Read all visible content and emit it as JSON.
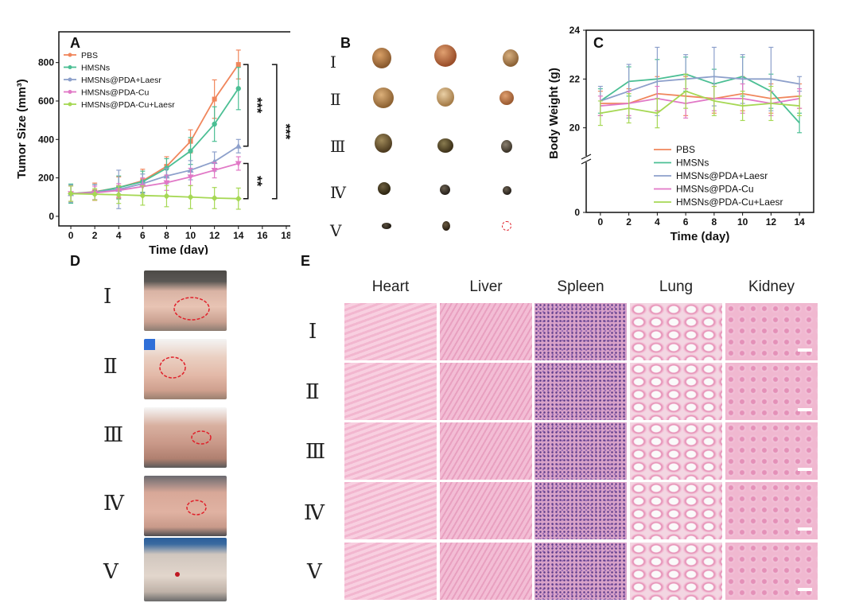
{
  "panels": {
    "a": "A",
    "b": "B",
    "c": "C",
    "d": "D",
    "e": "E"
  },
  "groups": [
    "Ⅰ",
    "Ⅱ",
    "Ⅲ",
    "Ⅳ",
    "Ⅴ"
  ],
  "organs": [
    "Heart",
    "Liver",
    "Spleen",
    "Lung",
    "Kidney"
  ],
  "colors": {
    "PBS": "#f0865c",
    "HMSNs": "#4bbf94",
    "HMSNs@PDA+Laesr": "#8da0cb",
    "HMSNs@PDA-Cu": "#e178c6",
    "HMSNs@PDA-Cu+Laesr": "#a6d854"
  },
  "chart_data": [
    {
      "type": "line",
      "panel": "A",
      "xlabel": "Time (day)",
      "ylabel": "Tumor Size (mm³)",
      "xlim": [
        -1,
        19
      ],
      "ylim": [
        -50,
        960
      ],
      "xticks": [
        0,
        2,
        4,
        6,
        8,
        10,
        12,
        14,
        16,
        18
      ],
      "yticks": [
        0,
        200,
        400,
        600,
        800
      ],
      "x": [
        0,
        2,
        4,
        6,
        8,
        10,
        12,
        14
      ],
      "series": [
        {
          "name": "PBS",
          "values": [
            118,
            128,
            150,
            185,
            260,
            390,
            610,
            790
          ],
          "errors": [
            40,
            45,
            55,
            60,
            50,
            60,
            100,
            75
          ]
        },
        {
          "name": "HMSNs",
          "values": [
            118,
            126,
            150,
            180,
            250,
            340,
            480,
            665
          ],
          "errors": [
            50,
            40,
            60,
            55,
            50,
            70,
            90,
            110
          ]
        },
        {
          "name": "HMSNs@PDA+Laesr",
          "values": [
            118,
            125,
            140,
            170,
            210,
            240,
            285,
            365
          ],
          "errors": [
            45,
            40,
            100,
            50,
            40,
            50,
            50,
            35
          ]
        },
        {
          "name": "HMSNs@PDA-Cu",
          "values": [
            118,
            122,
            135,
            155,
            175,
            205,
            240,
            275
          ],
          "errors": [
            40,
            35,
            35,
            45,
            40,
            45,
            40,
            35
          ]
        },
        {
          "name": "HMSNs@PDA-Cu+Laesr",
          "values": [
            118,
            115,
            112,
            108,
            105,
            100,
            95,
            92
          ],
          "errors": [
            40,
            30,
            45,
            50,
            55,
            60,
            55,
            55
          ]
        }
      ],
      "significance": [
        {
          "label": "***",
          "from": 365,
          "to": 790
        },
        {
          "label": "**",
          "from": 92,
          "to": 275
        },
        {
          "label": "***",
          "from": 92,
          "to": 790
        }
      ]
    },
    {
      "type": "line",
      "panel": "C",
      "xlabel": "Time (day)",
      "ylabel": "Body Weight (g)",
      "xlim": [
        -1,
        15
      ],
      "ylim": [
        0,
        24
      ],
      "axis_break": [
        0,
        19.5
      ],
      "xticks": [
        0,
        2,
        4,
        6,
        8,
        10,
        12,
        14
      ],
      "yticks": [
        0,
        20,
        22,
        24
      ],
      "x": [
        0,
        2,
        4,
        6,
        8,
        10,
        12,
        14
      ],
      "series": [
        {
          "name": "PBS",
          "values": [
            21.0,
            21.0,
            21.4,
            21.3,
            21.2,
            21.4,
            21.2,
            21.3
          ],
          "errors": [
            0.5,
            0.6,
            0.7,
            0.8,
            0.6,
            0.7,
            0.6,
            0.5
          ]
        },
        {
          "name": "HMSNs",
          "values": [
            21.1,
            21.9,
            22.0,
            22.2,
            21.8,
            22.1,
            21.5,
            20.2
          ],
          "errors": [
            0.5,
            0.6,
            0.8,
            0.7,
            0.6,
            0.8,
            0.7,
            0.4
          ]
        },
        {
          "name": "HMSNs@PDA+Laesr",
          "values": [
            21.1,
            21.5,
            21.9,
            22.0,
            22.1,
            22.0,
            22.0,
            21.8
          ],
          "errors": [
            0.6,
            1.1,
            1.4,
            1.0,
            1.2,
            1.0,
            1.3,
            0.3
          ]
        },
        {
          "name": "HMSNs@PDA-Cu",
          "values": [
            20.9,
            21.0,
            21.2,
            21.0,
            21.2,
            21.2,
            21.0,
            21.2
          ],
          "errors": [
            0.4,
            0.5,
            0.5,
            0.6,
            0.5,
            0.6,
            0.5,
            0.4
          ]
        },
        {
          "name": "HMSNs@PDA-Cu+Laesr",
          "values": [
            20.6,
            20.8,
            20.6,
            21.5,
            21.1,
            20.9,
            21.0,
            20.9
          ],
          "errors": [
            0.5,
            0.6,
            0.6,
            0.7,
            0.6,
            0.6,
            0.7,
            0.4
          ]
        }
      ]
    }
  ]
}
